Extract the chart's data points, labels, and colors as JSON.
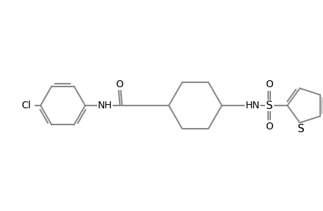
{
  "bg_color": "#ffffff",
  "bond_color": "#888888",
  "text_color": "#000000",
  "lw": 1.5,
  "figsize": [
    4.6,
    3.0
  ],
  "dpi": 100,
  "xlim": [
    0,
    460
  ],
  "ylim": [
    0,
    300
  ]
}
